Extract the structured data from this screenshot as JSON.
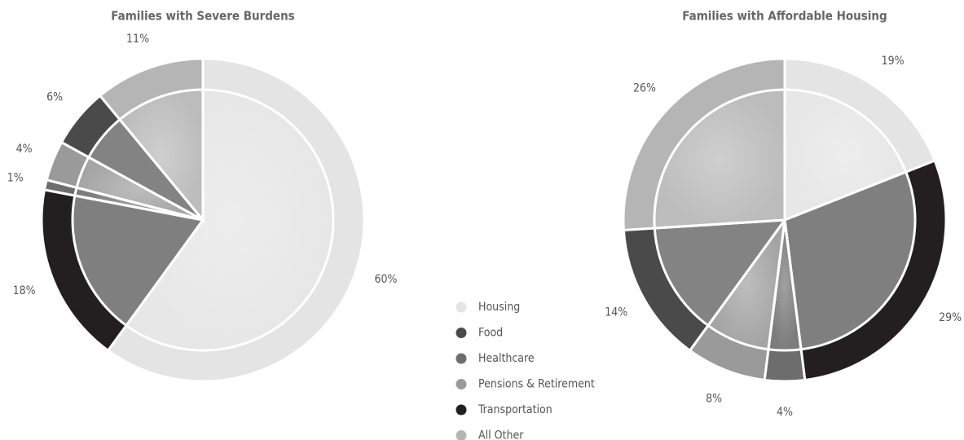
{
  "chart_data": [
    {
      "type": "pie",
      "title": "Families with Severe Burdens",
      "categories": [
        "Housing",
        "Transportation",
        "Healthcare",
        "Pensions & Retirement",
        "Food",
        "All Other"
      ],
      "values": [
        60,
        18,
        1,
        4,
        6,
        11
      ],
      "value_labels": [
        "60%",
        "18%",
        "1%",
        "4%",
        "6%",
        "11%"
      ],
      "colors": [
        "#e4e4e4",
        "#231f20",
        "#6d6d6d",
        "#9a9a9a",
        "#4a4a4a",
        "#b5b5b5"
      ]
    },
    {
      "type": "pie",
      "title": "Families with Affordable Housing",
      "categories": [
        "Housing",
        "Transportation",
        "Healthcare",
        "Pensions & Retirement",
        "Food",
        "All Other"
      ],
      "values": [
        19,
        29,
        4,
        8,
        14,
        26
      ],
      "value_labels": [
        "19%",
        "29%",
        "4%",
        "8%",
        "14%",
        "26%"
      ],
      "colors": [
        "#e4e4e4",
        "#231f20",
        "#6d6d6d",
        "#9a9a9a",
        "#4a4a4a",
        "#b5b5b5"
      ]
    }
  ]
}
